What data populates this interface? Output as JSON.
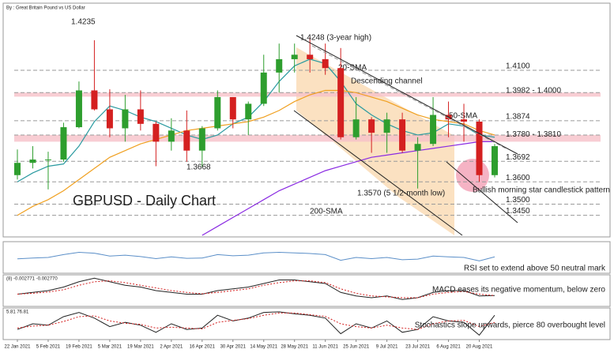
{
  "chart_data": [
    {
      "type": "candlestick",
      "title": "GBPUSD - Daily Chart",
      "subtitle": "By : Great Britain Pound vs US Dollar",
      "categories": [
        "22 Jan 2021",
        null,
        "5 Feb 2021",
        null,
        "19 Feb 2021",
        null,
        "5 Mar 2021",
        null,
        "19 Mar 2021",
        null,
        "2 Apr 2021",
        null,
        "16 Apr 2021",
        null,
        "30 Apr 2021",
        null,
        "14 May 2021",
        null,
        "28 May 2021",
        null,
        "11 Jun 2021",
        null,
        "25 Jun 2021",
        null,
        "9 Jul 2021",
        null,
        "23 Jul 2021",
        null,
        "6 Aug 2021",
        null,
        "20 Aug 2021",
        null
      ],
      "open": [
        1.363,
        1.3685,
        1.37,
        1.37,
        1.3845,
        1.401,
        1.3925,
        1.384,
        1.3925,
        1.386,
        1.378,
        1.383,
        1.374,
        1.384,
        1.398,
        1.388,
        1.395,
        1.409,
        1.415,
        1.417,
        1.415,
        1.411,
        1.38,
        1.388,
        1.382,
        1.388,
        1.374,
        1.377,
        1.39,
        1.388,
        1.387,
        1.363
      ],
      "high": [
        1.3745,
        1.376,
        1.3735,
        1.3865,
        1.405,
        1.4235,
        1.4015,
        1.399,
        1.401,
        1.387,
        1.3885,
        1.392,
        1.385,
        1.401,
        1.398,
        1.396,
        1.417,
        1.422,
        1.422,
        1.4248,
        1.422,
        1.42,
        1.398,
        1.389,
        1.391,
        1.391,
        1.38,
        1.398,
        1.396,
        1.395,
        1.388,
        1.377
      ],
      "low": [
        1.361,
        1.366,
        1.3566,
        1.369,
        1.384,
        1.392,
        1.38,
        1.378,
        1.383,
        1.367,
        1.374,
        1.369,
        1.3668,
        1.383,
        1.384,
        1.381,
        1.394,
        1.4,
        1.409,
        1.409,
        1.408,
        1.379,
        1.379,
        1.373,
        1.373,
        1.373,
        1.357,
        1.376,
        1.38,
        1.378,
        1.36,
        1.362
      ],
      "close": [
        1.3685,
        1.37,
        1.37,
        1.3845,
        1.401,
        1.3925,
        1.384,
        1.3925,
        1.386,
        1.378,
        1.383,
        1.374,
        1.384,
        1.398,
        1.388,
        1.395,
        1.409,
        1.415,
        1.417,
        1.415,
        1.411,
        1.38,
        1.388,
        1.382,
        1.388,
        1.374,
        1.377,
        1.39,
        1.388,
        1.387,
        1.363,
        1.376
      ],
      "up_color": "#2e9e2e",
      "down_color": "#d42020",
      "series": [
        {
          "name": "20-SMA",
          "color": "#2a9aa0",
          "values": [
            1.36,
            1.364,
            1.367,
            1.368,
            1.376,
            1.387,
            1.394,
            1.392,
            1.389,
            1.387,
            1.384,
            1.381,
            1.379,
            1.381,
            1.386,
            1.389,
            1.396,
            1.405,
            1.412,
            1.415,
            1.413,
            1.405,
            1.395,
            1.39,
            1.386,
            1.383,
            1.381,
            1.382,
            1.386,
            1.385,
            1.381,
            1.38
          ]
        },
        {
          "name": "50-SMA",
          "color": "#f0a020",
          "values": [
            1.345,
            1.349,
            1.352,
            1.356,
            1.361,
            1.366,
            1.371,
            1.374,
            1.377,
            1.379,
            1.381,
            1.383,
            1.384,
            1.385,
            1.386,
            1.387,
            1.389,
            1.392,
            1.396,
            1.399,
            1.401,
            1.401,
            1.4,
            1.398,
            1.396,
            1.393,
            1.39,
            1.388,
            1.387,
            1.386,
            1.383,
            1.381
          ]
        },
        {
          "name": "200-SMA",
          "color": "#8a2be2",
          "values": [
            null,
            null,
            null,
            null,
            null,
            null,
            null,
            null,
            null,
            null,
            null,
            null,
            1.336,
            1.34,
            1.344,
            1.348,
            1.352,
            1.356,
            1.359,
            1.362,
            1.365,
            1.367,
            1.369,
            1.371,
            1.372,
            1.373,
            1.374,
            1.375,
            1.376,
            1.377,
            1.378,
            1.378
          ]
        }
      ],
      "levels": [
        {
          "value": 1.41,
          "label": "1.4100",
          "color": "#e8413c"
        },
        {
          "from": 1.3982,
          "to": 1.4,
          "label": "1.3982 - 1.4000",
          "color": "#e8413c"
        },
        {
          "value": 1.3874,
          "label": "1.3874",
          "color": "#e8413c"
        },
        {
          "from": 1.378,
          "to": 1.381,
          "label": "1.3780 - 1.3810",
          "color": "#e8413c"
        },
        {
          "value": 1.3692,
          "label": "1.3692",
          "color": "#2a5bd7"
        },
        {
          "value": 1.36,
          "label": "1.3600",
          "color": "#222222"
        },
        {
          "value": 1.35,
          "label": "1.3500",
          "color": "#2a5bd7"
        },
        {
          "value": 1.345,
          "label": "1.3450",
          "color": "#2a5bd7"
        }
      ],
      "annotations": [
        {
          "text": "1.4235",
          "color": "#222222"
        },
        {
          "text": "1.4248 (3-year high)",
          "color": "#222222"
        },
        {
          "text": "Descending channel",
          "color": "#222222"
        },
        {
          "text": "1.3668",
          "color": "#222222"
        },
        {
          "text": "1.3570 (5 1/2-month low)",
          "color": "#222222"
        },
        {
          "text": "Bullish morning star candlestick pattern",
          "color": "#222222"
        }
      ],
      "ylim": [
        1.336,
        1.438
      ]
    },
    {
      "type": "line",
      "caption": "RSI set to extend above 50 neutral mark",
      "series": [
        {
          "color": "#5b8fc8",
          "values": [
            45,
            48,
            50,
            60,
            68,
            65,
            55,
            58,
            53,
            46,
            52,
            47,
            48,
            60,
            56,
            58,
            66,
            68,
            66,
            64,
            60,
            40,
            50,
            46,
            50,
            42,
            44,
            55,
            52,
            50,
            38,
            52
          ]
        }
      ],
      "ylim": [
        0,
        100
      ]
    },
    {
      "type": "line",
      "header": "(8) -0.002771 -0.002770",
      "caption": "MACD eases its negative momentum, below zero",
      "series": [
        {
          "color": "#222222",
          "values": [
            -0.002,
            -0.001,
            0,
            0.002,
            0.005,
            0.007,
            0.005,
            0.003,
            0.002,
            0,
            -0.001,
            -0.002,
            -0.002,
            0,
            0.001,
            0.002,
            0.004,
            0.006,
            0.006,
            0.005,
            0.004,
            -0.001,
            -0.003,
            -0.004,
            -0.003,
            -0.005,
            -0.004,
            -0.001,
            0,
            0,
            -0.003,
            -0.0028
          ]
        },
        {
          "color": "#d42020",
          "dashed": true,
          "values": [
            -0.002,
            -0.0015,
            -0.0008,
            0.0005,
            0.003,
            0.005,
            0.0055,
            0.0045,
            0.003,
            0.0015,
            0,
            -0.001,
            -0.0018,
            -0.001,
            0,
            0.001,
            0.003,
            0.0045,
            0.0055,
            0.0055,
            0.0045,
            0.001,
            -0.0015,
            -0.003,
            -0.0035,
            -0.004,
            -0.004,
            -0.002,
            -0.001,
            -0.0005,
            -0.002,
            -0.0028
          ]
        }
      ],
      "ylim": [
        -0.008,
        0.008
      ]
    },
    {
      "type": "line",
      "header": "5.81 76.81",
      "caption": "Stochastics slope upwards, pierce 80 overbought level",
      "series": [
        {
          "color": "#222222",
          "values": [
            30,
            50,
            45,
            75,
            90,
            70,
            40,
            55,
            45,
            20,
            50,
            30,
            35,
            80,
            60,
            70,
            90,
            92,
            85,
            80,
            70,
            15,
            50,
            35,
            60,
            20,
            30,
            75,
            60,
            55,
            10,
            80
          ]
        },
        {
          "color": "#d42020",
          "dashed": true,
          "values": [
            35,
            42,
            45,
            58,
            75,
            78,
            60,
            52,
            48,
            35,
            38,
            35,
            32,
            55,
            62,
            68,
            80,
            88,
            88,
            82,
            76,
            50,
            40,
            35,
            45,
            35,
            30,
            50,
            60,
            62,
            40,
            55
          ]
        }
      ],
      "ylim": [
        0,
        100
      ]
    }
  ]
}
